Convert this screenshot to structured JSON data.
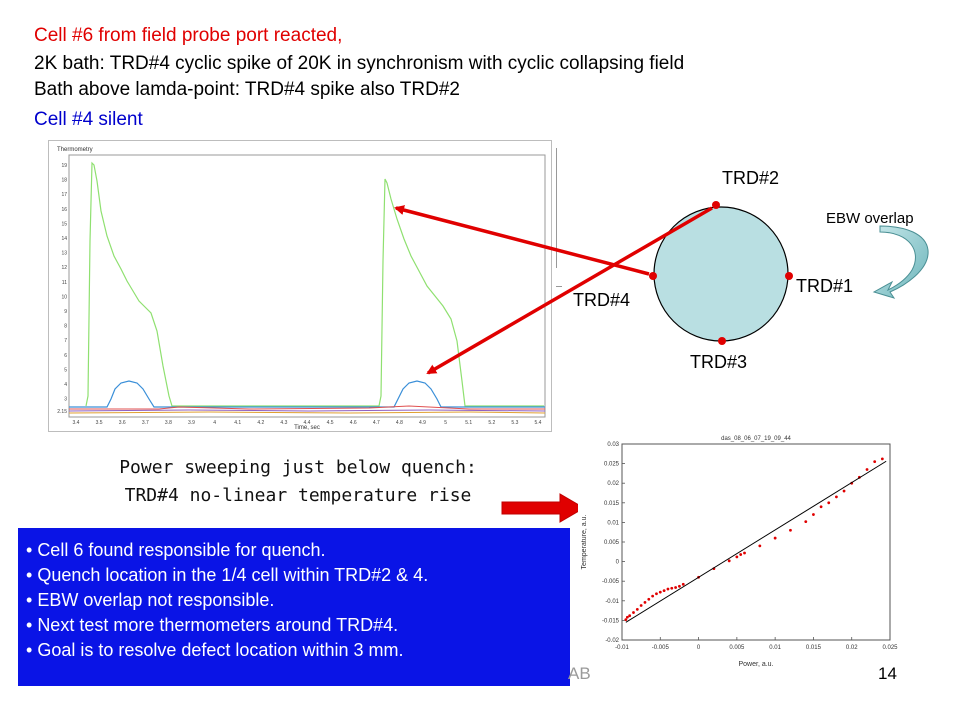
{
  "header": {
    "line1": "Cell #6 from field probe port reacted,",
    "line2": "2K bath: TRD#4 cyclic spike of 20K in synchronism with cyclic collapsing field",
    "line3": "Bath above lamda-point: TRD#4 spike also TRD#2",
    "line4": "Cell #4 silent",
    "line1_color": "#e00000",
    "line4_color": "#0000cc"
  },
  "thermometry_plot": {
    "title": "Thermometry",
    "xlabel": "Time, sec",
    "x_ticks": [
      "3.4",
      "3.5",
      "3.6",
      "3.7",
      "3.8",
      "3.9",
      "4",
      "4.1",
      "4.2",
      "4.3",
      "4.4",
      "4.5",
      "4.6",
      "4.7",
      "4.8",
      "4.9",
      "5",
      "5.1",
      "5.2",
      "5.3",
      "5.4"
    ],
    "y_ticks": [
      "2.15",
      "3",
      "4",
      "5",
      "6",
      "7",
      "8",
      "9",
      "10",
      "11",
      "12",
      "13",
      "14",
      "15",
      "16",
      "17",
      "18",
      "19"
    ]
  },
  "cell_diagram": {
    "labels": {
      "trd1": "TRD#1",
      "trd2": "TRD#2",
      "trd3": "TRD#3",
      "trd4": "TRD#4"
    },
    "ebw_overlap": "EBW overlap",
    "cell_fill": "#b9dfe2",
    "marker_color": "#e00000"
  },
  "caption": {
    "line1": "Power sweeping just below quench:",
    "line2": "TRD#4 no-linear temperature rise"
  },
  "chart_data": {
    "type": "scatter",
    "title": "das_08_06_07_19_09_44",
    "xlabel": "Power, a.u.",
    "ylabel": "Temperature, a.u.",
    "xlim": [
      -0.01,
      0.025
    ],
    "ylim": [
      -0.02,
      0.03
    ],
    "x_ticks": [
      "-0.01",
      "-0.005",
      "0",
      "0.005",
      "0.01",
      "0.015",
      "0.02",
      "0.025"
    ],
    "y_ticks": [
      "-0.02",
      "-0.015",
      "-0.01",
      "-0.005",
      "0",
      "0.005",
      "0.01",
      "0.015",
      "0.02",
      "0.025",
      "0.03"
    ],
    "series": [
      {
        "values": [
          [
            -0.0095,
            -0.0148
          ],
          [
            -0.0093,
            -0.0142
          ],
          [
            -0.009,
            -0.0138
          ],
          [
            -0.0085,
            -0.013
          ],
          [
            -0.008,
            -0.0122
          ],
          [
            -0.0075,
            -0.0112
          ],
          [
            -0.007,
            -0.0104
          ],
          [
            -0.0065,
            -0.0096
          ],
          [
            -0.006,
            -0.0088
          ],
          [
            -0.0055,
            -0.0082
          ],
          [
            -0.005,
            -0.0078
          ],
          [
            -0.0045,
            -0.0074
          ],
          [
            -0.004,
            -0.007
          ],
          [
            -0.0035,
            -0.0068
          ],
          [
            -0.003,
            -0.0066
          ],
          [
            -0.0025,
            -0.0063
          ],
          [
            -0.002,
            -0.0058
          ],
          [
            0.0,
            -0.004
          ],
          [
            0.002,
            -0.0018
          ],
          [
            0.004,
            0.0002
          ],
          [
            0.005,
            0.0012
          ],
          [
            0.0055,
            0.0018
          ],
          [
            0.006,
            0.0022
          ],
          [
            0.008,
            0.004
          ],
          [
            0.01,
            0.006
          ],
          [
            0.012,
            0.008
          ],
          [
            0.014,
            0.0102
          ],
          [
            0.015,
            0.012
          ],
          [
            0.016,
            0.014
          ],
          [
            0.017,
            0.015
          ],
          [
            0.018,
            0.0165
          ],
          [
            0.019,
            0.018
          ],
          [
            0.02,
            0.02
          ],
          [
            0.021,
            0.0215
          ],
          [
            0.022,
            0.0235
          ],
          [
            0.023,
            0.0255
          ],
          [
            0.024,
            0.0262
          ]
        ],
        "color": "#e00000"
      }
    ],
    "fit_line": {
      "x": [
        -0.0095,
        0.0245
      ],
      "y": [
        -0.0155,
        0.0256
      ],
      "color": "#000000"
    }
  },
  "summary": {
    "bullets": [
      "Cell 6 found responsible for quench.",
      "Quench location in the 1/4 cell within TRD#2 & 4.",
      "EBW overlap not responsible.",
      "Next test more thermometers around TRD#4.",
      "Goal is to resolve defect location within 3 mm."
    ],
    "background": "#0a14e6"
  },
  "footer": {
    "fragment": "AB",
    "slide_number": "14"
  }
}
